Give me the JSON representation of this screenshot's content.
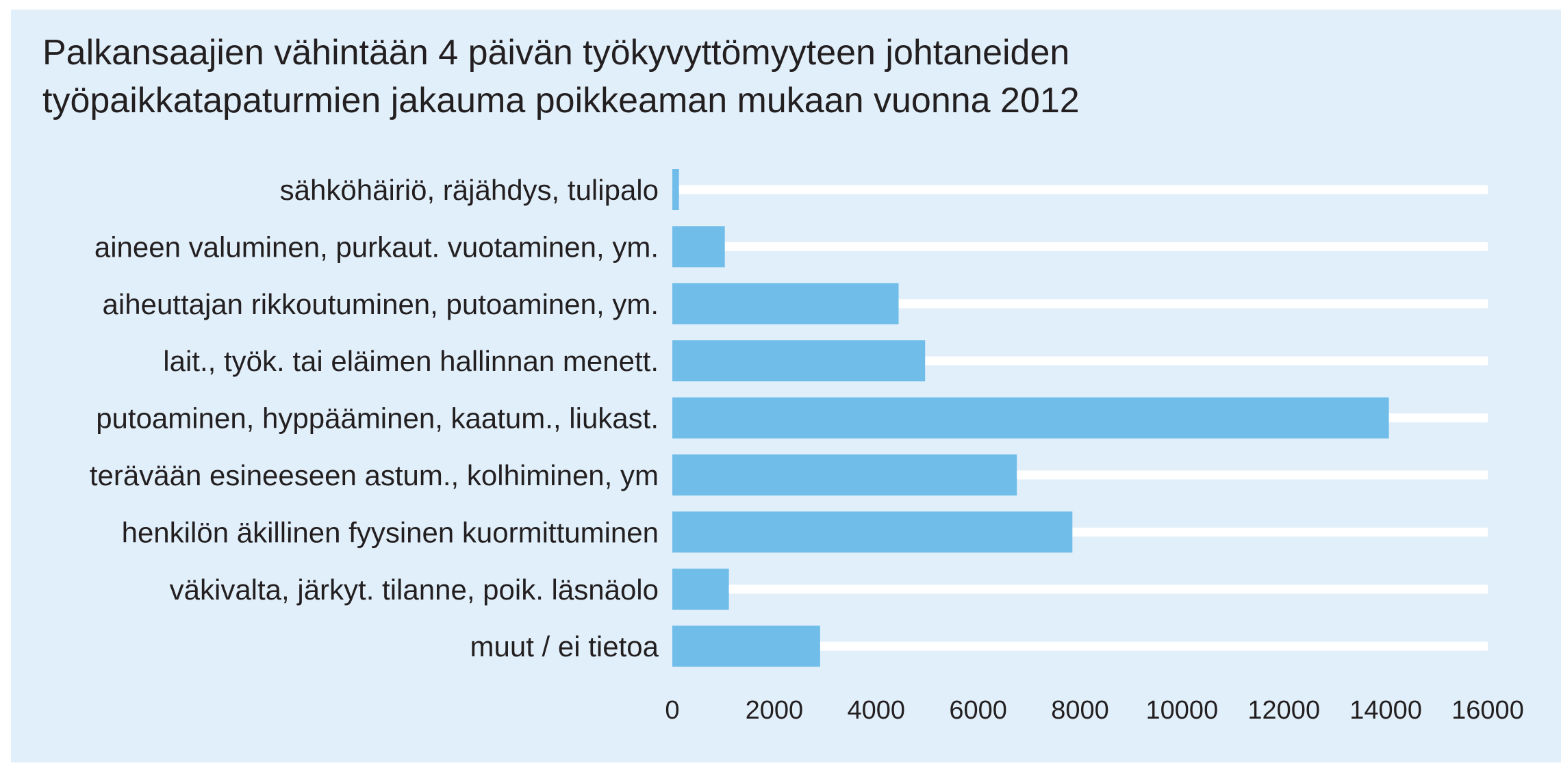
{
  "chart_data": {
    "type": "bar",
    "orientation": "horizontal",
    "title_lines": [
      "Palkansaajien vähintään 4 päivän työkyvyttömyyteen johtaneiden",
      "työpaikkatapaturmien jakauma poikkeaman mukaan vuonna 2012"
    ],
    "categories": [
      "sähköhäiriö, räjähdys, tulipalo",
      "aineen valuminen, purkaut. vuotaminen, ym.",
      "aiheuttajan rikkoutuminen, putoaminen, ym.",
      "lait., työk. tai eläimen hallinnan menett.",
      "putoaminen, hyppääminen, kaatum., liukast.",
      "terävään esineeseen astum., kolhiminen, ym",
      "henkilön äkillinen fyysinen kuormittuminen",
      "väkivalta, järkyt. tilanne, poik. läsnäolo",
      "muut / ei tietoa"
    ],
    "values": [
      130,
      1030,
      4440,
      4960,
      14060,
      6760,
      7850,
      1110,
      2900
    ],
    "xlim": [
      0,
      16000
    ],
    "xticks": [
      0,
      2000,
      4000,
      6000,
      8000,
      10000,
      12000,
      14000,
      16000
    ],
    "xtick_labels": [
      "0",
      "2000",
      "4000",
      "6000",
      "8000",
      "10000",
      "12000",
      "14000",
      "16000"
    ],
    "xlabel": "",
    "ylabel": "",
    "legend": "none",
    "grid": "background track per category",
    "colors": {
      "bar": "#70bde9",
      "track": "#ffffff",
      "background": "#e1effa",
      "text": "#231f20"
    }
  }
}
